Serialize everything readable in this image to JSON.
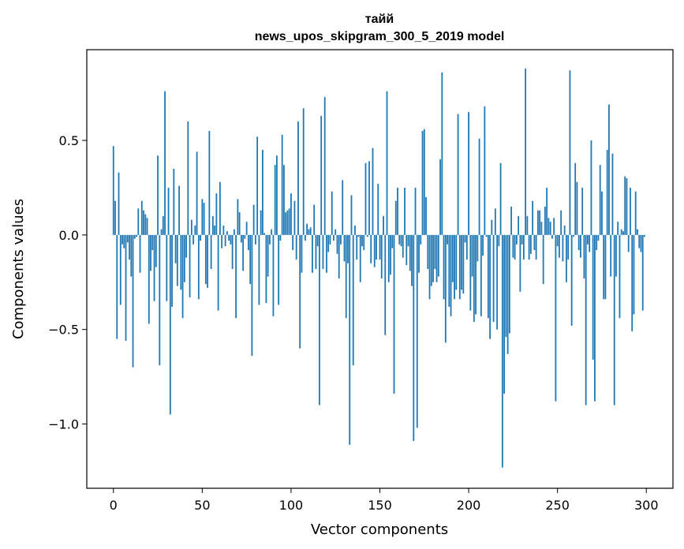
{
  "chart_data": {
    "type": "bar",
    "title_line1": "тайй",
    "title_line2": "news_upos_skipgram_300_5_2019 model",
    "xlabel": "Vector components",
    "ylabel": "Components values",
    "xlim": [
      -15,
      315
    ],
    "ylim": [
      -1.34,
      0.98
    ],
    "xticks": [
      0,
      50,
      100,
      150,
      200,
      250,
      300
    ],
    "xtick_labels": [
      "0",
      "50",
      "100",
      "150",
      "200",
      "250",
      "300"
    ],
    "yticks": [
      0.5,
      0.0,
      -0.5,
      -1.0
    ],
    "ytick_labels": [
      "0.5",
      "0.0",
      "−0.5",
      "−1.0"
    ],
    "bar_color": "#1f77b4",
    "values": [
      0.47,
      0.18,
      -0.55,
      0.33,
      -0.37,
      -0.05,
      -0.07,
      -0.56,
      -0.04,
      -0.13,
      -0.22,
      -0.7,
      -0.02,
      -0.01,
      0.14,
      -0.2,
      0.18,
      0.13,
      0.11,
      0.09,
      -0.47,
      -0.19,
      -0.08,
      -0.35,
      -0.17,
      0.42,
      -0.69,
      0.03,
      0.1,
      0.76,
      -0.35,
      0.25,
      -0.95,
      -0.38,
      0.35,
      -0.15,
      -0.27,
      0.26,
      -0.29,
      -0.44,
      -0.25,
      -0.12,
      0.6,
      -0.33,
      0.08,
      -0.05,
      0.05,
      0.44,
      -0.34,
      -0.03,
      0.19,
      0.17,
      -0.26,
      -0.28,
      0.55,
      -0.18,
      0.1,
      0.05,
      0.22,
      -0.4,
      0.28,
      -0.07,
      0.05,
      -0.06,
      0.02,
      -0.03,
      -0.05,
      -0.18,
      0.03,
      -0.44,
      0.19,
      0.12,
      -0.04,
      -0.19,
      -0.02,
      0.07,
      -0.08,
      -0.26,
      -0.64,
      0.16,
      -0.05,
      0.52,
      -0.37,
      0.13,
      0.45,
      0.01,
      -0.36,
      -0.22,
      -0.05,
      0.03,
      -0.43,
      0.37,
      0.42,
      -0.37,
      -0.03,
      0.53,
      0.37,
      0.12,
      0.13,
      0.14,
      0.22,
      -0.08,
      0.18,
      -0.13,
      0.6,
      -0.6,
      -0.2,
      0.67,
      -0.03,
      0.06,
      0.03,
      0.04,
      -0.2,
      0.16,
      -0.18,
      -0.06,
      -0.9,
      0.63,
      -0.18,
      0.73,
      -0.2,
      -0.09,
      -0.05,
      0.23,
      -0.03,
      0.03,
      -0.1,
      -0.23,
      -0.05,
      0.29,
      -0.14,
      -0.44,
      -0.15,
      -1.11,
      0.21,
      -0.69,
      0.05,
      -0.13,
      -0.01,
      -0.25,
      -0.06,
      -0.08,
      0.38,
      -0.01,
      0.39,
      -0.15,
      0.46,
      -0.17,
      -0.13,
      0.27,
      -0.13,
      -0.23,
      0.1,
      -0.53,
      0.76,
      -0.25,
      -0.21,
      -0.07,
      -0.84,
      0.18,
      0.25,
      -0.05,
      -0.06,
      -0.12,
      0.25,
      -0.16,
      -0.06,
      -0.19,
      -0.27,
      -1.09,
      0.25,
      -1.02,
      -0.2,
      -0.05,
      0.55,
      0.56,
      0.2,
      -0.18,
      -0.34,
      -0.27,
      -0.25,
      -0.18,
      -0.25,
      -0.22,
      0.4,
      0.86,
      -0.34,
      -0.57,
      -0.05,
      -0.38,
      -0.43,
      -0.25,
      -0.34,
      -0.29,
      0.64,
      -0.34,
      -0.29,
      -0.31,
      -0.04,
      -0.13,
      0.65,
      -0.4,
      -0.22,
      -0.46,
      -0.42,
      -0.14,
      0.51,
      -0.43,
      -0.11,
      0.68,
      -0.01,
      -0.44,
      -0.55,
      0.08,
      -0.46,
      0.14,
      -0.5,
      -0.06,
      0.38,
      -1.23,
      -0.84,
      -0.54,
      -0.63,
      -0.52,
      0.15,
      -0.12,
      -0.13,
      -0.05,
      0.1,
      -0.3,
      -0.05,
      -0.13,
      0.88,
      0.1,
      -0.13,
      -0.1,
      0.18,
      -0.08,
      -0.13,
      0.13,
      0.13,
      0.07,
      -0.26,
      0.15,
      0.25,
      0.09,
      0.07,
      -0.02,
      0.09,
      -0.88,
      -0.06,
      -0.12,
      0.13,
      -0.14,
      0.05,
      -0.25,
      -0.13,
      0.87,
      -0.48,
      -0.01,
      0.38,
      0.28,
      -0.08,
      -0.12,
      0.25,
      -0.23,
      -0.9,
      -0.05,
      -0.09,
      0.5,
      -0.66,
      -0.88,
      -0.08,
      -0.03,
      0.37,
      0.23,
      -0.34,
      -0.34,
      0.45,
      0.69,
      -0.22,
      0.43,
      -0.9,
      -0.22,
      0.07,
      -0.44,
      0.03,
      0.02,
      0.31,
      0.3,
      -0.09,
      0.25,
      -0.51,
      -0.42,
      0.23,
      0.03,
      -0.07,
      -0.09,
      -0.4,
      -0.01
    ]
  }
}
